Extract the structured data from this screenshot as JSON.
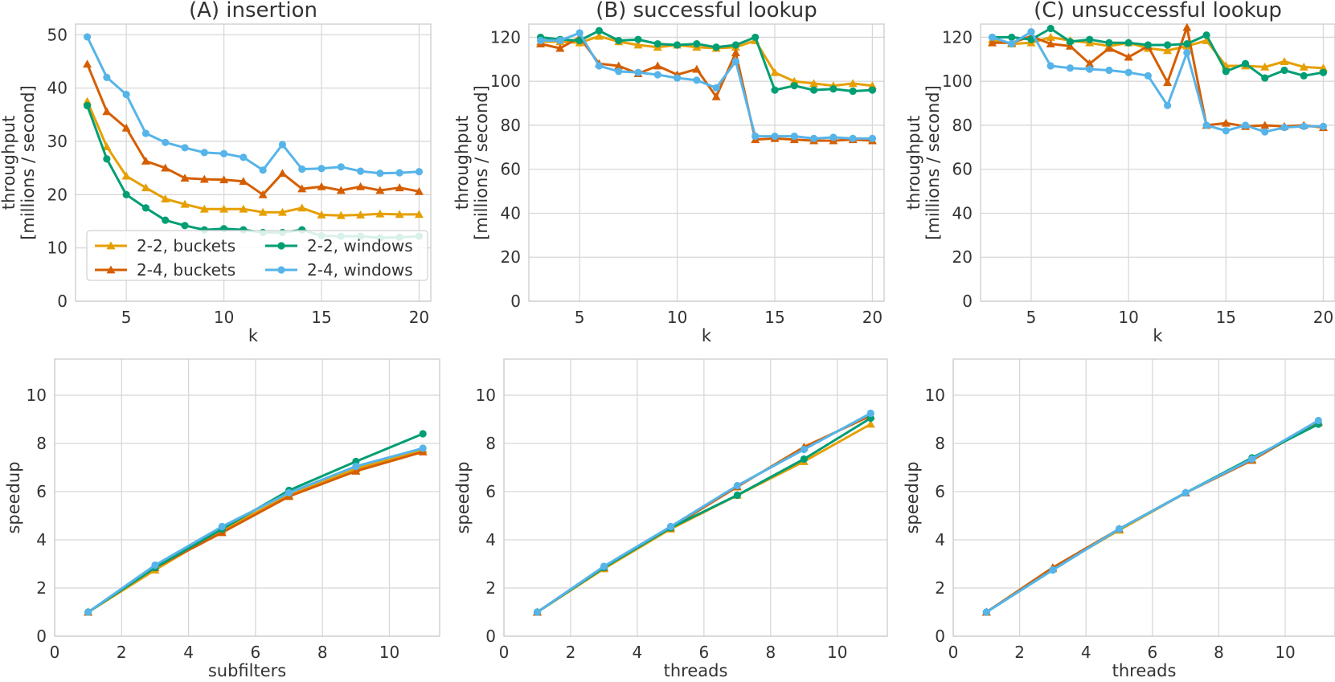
{
  "colors": {
    "2-2, buckets": "#E69F00",
    "2-4, buckets": "#D55E00",
    "2-2, windows": "#009E73",
    "2-4, windows": "#56B4E9"
  },
  "legend": {
    "placement": "lower-left of panel A",
    "entries": [
      {
        "label": "2-2, buckets",
        "marker": "triangle"
      },
      {
        "label": "2-4, buckets",
        "marker": "triangle"
      },
      {
        "label": "2-2, windows",
        "marker": "circle"
      },
      {
        "label": "2-4, windows",
        "marker": "circle"
      }
    ]
  },
  "chart_data": [
    {
      "type": "line",
      "title": "(A) insertion",
      "xlabel": "k",
      "ylabel": [
        "throughput",
        "[millions / second]"
      ],
      "xlim": [
        2.4,
        20.6
      ],
      "ylim": [
        0,
        52
      ],
      "xticks": [
        5,
        10,
        15,
        20
      ],
      "yticks": [
        0,
        10,
        20,
        30,
        40,
        50
      ],
      "grid": true,
      "x": [
        3,
        4,
        5,
        6,
        7,
        8,
        9,
        10,
        11,
        12,
        13,
        14,
        15,
        16,
        17,
        18,
        19,
        20
      ],
      "series": [
        {
          "name": "2-2, buckets",
          "marker": "triangle",
          "values": [
            37.5,
            29,
            23.5,
            21.3,
            19.2,
            18.2,
            17.3,
            17.3,
            17.3,
            16.7,
            16.7,
            17.5,
            16.2,
            16.1,
            16.2,
            16.4,
            16.3,
            16.3
          ]
        },
        {
          "name": "2-4, buckets",
          "marker": "triangle",
          "values": [
            44.5,
            35.6,
            32.5,
            26.3,
            25,
            23.1,
            22.9,
            22.8,
            22.5,
            20,
            24,
            21.1,
            21.5,
            20.8,
            21.5,
            20.8,
            21.3,
            20.6
          ]
        },
        {
          "name": "2-2, windows",
          "marker": "circle",
          "values": [
            36.7,
            26.7,
            20,
            17.5,
            15.2,
            14.2,
            13.4,
            13.6,
            13.4,
            12.9,
            12.9,
            13.4,
            12.3,
            12.2,
            12.2,
            11.9,
            12,
            12.2
          ]
        },
        {
          "name": "2-4, windows",
          "marker": "circle",
          "values": [
            49.6,
            42,
            38.8,
            31.5,
            29.8,
            28.8,
            27.9,
            27.7,
            27,
            24.6,
            29.4,
            24.8,
            24.9,
            25.2,
            24.4,
            24,
            24.1,
            24.3
          ]
        }
      ]
    },
    {
      "type": "line",
      "title": "(B) successful lookup",
      "xlabel": "k",
      "ylabel": [
        "throughput",
        "[millions / second]"
      ],
      "xlim": [
        2.4,
        20.6
      ],
      "ylim": [
        0,
        126
      ],
      "xticks": [
        5,
        10,
        15,
        20
      ],
      "yticks": [
        0,
        20,
        40,
        60,
        80,
        100,
        120
      ],
      "grid": true,
      "x": [
        3,
        4,
        5,
        6,
        7,
        8,
        9,
        10,
        11,
        12,
        13,
        14,
        15,
        16,
        17,
        18,
        19,
        20
      ],
      "series": [
        {
          "name": "2-2, buckets",
          "marker": "triangle",
          "values": [
            118,
            118,
            117.5,
            120.5,
            118,
            116.5,
            115.5,
            116.5,
            115.5,
            115,
            115.5,
            118.5,
            104,
            100,
            99,
            98,
            99,
            98
          ]
        },
        {
          "name": "2-4, buckets",
          "marker": "triangle",
          "values": [
            117,
            115,
            120,
            108,
            107,
            103.5,
            107,
            103,
            105.5,
            93,
            113,
            73.5,
            74,
            73.5,
            73,
            73,
            73.5,
            73
          ]
        },
        {
          "name": "2-2, windows",
          "marker": "circle",
          "values": [
            120,
            119,
            118.5,
            123,
            118.5,
            119,
            117,
            116.5,
            117,
            115.5,
            116.5,
            120,
            96,
            98,
            96,
            96.5,
            95.5,
            96
          ]
        },
        {
          "name": "2-4, windows",
          "marker": "circle",
          "values": [
            118.5,
            118.5,
            122,
            107,
            104.5,
            104,
            103,
            101.5,
            100.5,
            97,
            109,
            75,
            75,
            75,
            74,
            74.5,
            74,
            74
          ]
        }
      ]
    },
    {
      "type": "line",
      "title": "(C) unsuccessful lookup",
      "xlabel": "k",
      "ylabel": [
        "throughput",
        "[millions / second]"
      ],
      "xlim": [
        2.4,
        20.6
      ],
      "ylim": [
        0,
        126
      ],
      "xticks": [
        5,
        10,
        15,
        20
      ],
      "yticks": [
        0,
        20,
        40,
        60,
        80,
        100,
        120
      ],
      "grid": true,
      "x": [
        3,
        4,
        5,
        6,
        7,
        8,
        9,
        10,
        11,
        12,
        13,
        14,
        15,
        16,
        17,
        18,
        19,
        20
      ],
      "series": [
        {
          "name": "2-2, buckets",
          "marker": "triangle",
          "values": [
            119,
            117,
            117.5,
            120,
            118.5,
            117.5,
            116,
            117.5,
            115,
            114,
            116,
            118.5,
            107,
            107,
            106.5,
            109,
            106.5,
            106
          ]
        },
        {
          "name": "2-4, buckets",
          "marker": "triangle",
          "values": [
            117.5,
            117.5,
            120.5,
            117,
            116,
            108,
            115,
            111,
            116,
            99.5,
            124.5,
            80,
            81,
            79.5,
            80,
            79.5,
            80,
            79
          ]
        },
        {
          "name": "2-2, windows",
          "marker": "circle",
          "values": [
            120,
            120,
            119,
            124,
            118,
            119,
            117.5,
            117.5,
            116.5,
            116.5,
            117,
            121,
            104.5,
            108,
            101.5,
            105,
            102.5,
            104
          ]
        },
        {
          "name": "2-4, windows",
          "marker": "circle",
          "values": [
            120,
            117,
            122.5,
            107,
            106,
            105.5,
            105,
            104,
            102.5,
            89,
            113,
            80,
            77.5,
            80,
            77,
            79,
            79.5,
            79.5
          ]
        }
      ]
    },
    {
      "type": "line",
      "title": "",
      "xlabel": "subfilters",
      "ylabel": [
        "speedup"
      ],
      "xlim": [
        0,
        11.5
      ],
      "ylim": [
        0,
        11.5
      ],
      "xticks": [
        0,
        2,
        4,
        6,
        8,
        10
      ],
      "yticks": [
        0,
        2,
        4,
        6,
        8,
        10
      ],
      "grid": true,
      "x": [
        1,
        3,
        5,
        7,
        9,
        11
      ],
      "series": [
        {
          "name": "2-2, buckets",
          "marker": "triangle",
          "values": [
            1,
            2.75,
            4.4,
            5.85,
            6.95,
            7.75
          ]
        },
        {
          "name": "2-4, buckets",
          "marker": "triangle",
          "values": [
            1,
            2.85,
            4.3,
            5.8,
            6.85,
            7.65
          ]
        },
        {
          "name": "2-2, windows",
          "marker": "circle",
          "values": [
            1,
            2.85,
            4.45,
            6.05,
            7.25,
            8.4
          ]
        },
        {
          "name": "2-4, windows",
          "marker": "circle",
          "values": [
            1,
            2.95,
            4.55,
            5.95,
            7.05,
            7.8
          ]
        }
      ]
    },
    {
      "type": "line",
      "title": "",
      "xlabel": "threads",
      "ylabel": [
        "speedup"
      ],
      "xlim": [
        0,
        11.5
      ],
      "ylim": [
        0,
        11.5
      ],
      "xticks": [
        0,
        2,
        4,
        6,
        8,
        10
      ],
      "yticks": [
        0,
        2,
        4,
        6,
        8,
        10
      ],
      "grid": true,
      "x": [
        1,
        3,
        5,
        7,
        9,
        11
      ],
      "series": [
        {
          "name": "2-2, buckets",
          "marker": "triangle",
          "values": [
            1,
            2.8,
            4.45,
            5.85,
            7.25,
            8.8
          ]
        },
        {
          "name": "2-4, buckets",
          "marker": "triangle",
          "values": [
            1,
            2.85,
            4.5,
            6.2,
            7.85,
            9.15
          ]
        },
        {
          "name": "2-2, windows",
          "marker": "circle",
          "values": [
            1,
            2.85,
            4.5,
            5.85,
            7.35,
            9.05
          ]
        },
        {
          "name": "2-4, windows",
          "marker": "circle",
          "values": [
            1,
            2.9,
            4.55,
            6.25,
            7.75,
            9.25
          ]
        }
      ]
    },
    {
      "type": "line",
      "title": "",
      "xlabel": "threads",
      "ylabel": [
        "speedup"
      ],
      "xlim": [
        0,
        11.5
      ],
      "ylim": [
        0,
        11.5
      ],
      "xticks": [
        0,
        2,
        4,
        6,
        8,
        10
      ],
      "yticks": [
        0,
        2,
        4,
        6,
        8,
        10
      ],
      "grid": true,
      "x": [
        1,
        3,
        5,
        7,
        9,
        11
      ],
      "series": [
        {
          "name": "2-2, buckets",
          "marker": "triangle",
          "values": [
            1,
            2.8,
            4.4,
            5.95,
            7.35,
            8.85
          ]
        },
        {
          "name": "2-4, buckets",
          "marker": "triangle",
          "values": [
            1,
            2.85,
            4.45,
            5.95,
            7.3,
            8.9
          ]
        },
        {
          "name": "2-2, windows",
          "marker": "circle",
          "values": [
            1,
            2.75,
            4.45,
            5.95,
            7.4,
            8.8
          ]
        },
        {
          "name": "2-4, windows",
          "marker": "circle",
          "values": [
            1,
            2.75,
            4.45,
            5.95,
            7.35,
            8.95
          ]
        }
      ]
    }
  ]
}
